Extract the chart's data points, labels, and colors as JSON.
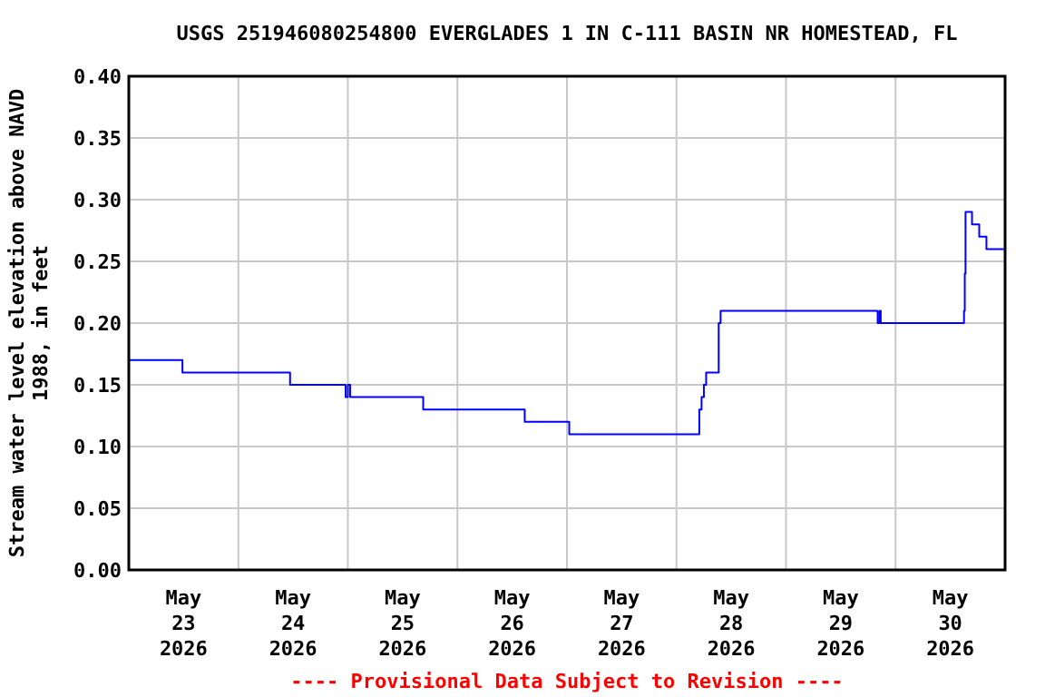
{
  "chart_data": {
    "type": "step",
    "title": "USGS 251946080254800 EVERGLADES 1 IN C-111 BASIN NR HOMESTEAD, FL",
    "ylabel": "Stream water level elevation above NAVD\n1988, in feet",
    "annotations": [
      "---- Provisional Data Subject to Revision ----"
    ],
    "x": [
      "2026-05-23T00:00",
      "2026-05-23T11:45",
      "2026-05-24T11:20",
      "2026-05-24T23:30",
      "2026-05-25T00:00",
      "2026-05-25T00:30",
      "2026-05-25T16:30",
      "2026-05-26T14:45",
      "2026-05-27T00:30",
      "2026-05-28T05:00",
      "2026-05-28T05:30",
      "2026-05-28T06:00",
      "2026-05-28T06:30",
      "2026-05-28T09:15",
      "2026-05-28T09:40",
      "2026-05-29T20:05",
      "2026-05-29T20:30",
      "2026-05-29T20:45",
      "2026-05-30T15:00",
      "2026-05-30T15:10",
      "2026-05-30T15:20",
      "2026-05-30T16:45",
      "2026-05-30T18:20",
      "2026-05-30T19:55",
      "2026-05-30T23:45"
    ],
    "series": [
      {
        "color": "#0000ff",
        "values": [
          0.17,
          0.16,
          0.15,
          0.14,
          0.15,
          0.14,
          0.13,
          0.12,
          0.11,
          0.13,
          0.14,
          0.15,
          0.16,
          0.2,
          0.21,
          0.2,
          0.21,
          0.2,
          0.21,
          0.24,
          0.29,
          0.28,
          0.27,
          0.26,
          0.26
        ]
      }
    ],
    "xlim": [
      "2026-05-23T00:00",
      "2026-05-31T00:00"
    ],
    "xticks": [
      {
        "value": "2026-05-23T12:00",
        "label": "May\n23\n2026"
      },
      {
        "value": "2026-05-24T00:00",
        "label": null
      },
      {
        "value": "2026-05-24T12:00",
        "label": "May\n24\n2026"
      },
      {
        "value": "2026-05-25T00:00",
        "label": null
      },
      {
        "value": "2026-05-25T12:00",
        "label": "May\n25\n2026"
      },
      {
        "value": "2026-05-26T00:00",
        "label": null
      },
      {
        "value": "2026-05-26T12:00",
        "label": "May\n26\n2026"
      },
      {
        "value": "2026-05-27T00:00",
        "label": null
      },
      {
        "value": "2026-05-27T12:00",
        "label": "May\n27\n2026"
      },
      {
        "value": "2026-05-28T00:00",
        "label": null
      },
      {
        "value": "2026-05-28T12:00",
        "label": "May\n28\n2026"
      },
      {
        "value": "2026-05-29T00:00",
        "label": null
      },
      {
        "value": "2026-05-29T12:00",
        "label": "May\n29\n2026"
      },
      {
        "value": "2026-05-30T00:00",
        "label": null
      },
      {
        "value": "2026-05-30T12:00",
        "label": "May\n30\n2026"
      }
    ],
    "ylim": [
      0,
      0.4
    ],
    "yticks": [
      {
        "value": 0,
        "label": "0.00"
      },
      {
        "value": 0.05,
        "label": "0.05"
      },
      {
        "value": 0.1,
        "label": "0.10"
      },
      {
        "value": 0.15,
        "label": "0.15"
      },
      {
        "value": 0.2,
        "label": "0.20"
      },
      {
        "value": 0.25,
        "label": "0.25"
      },
      {
        "value": 0.3,
        "label": "0.30"
      },
      {
        "value": 0.35,
        "label": "0.35"
      },
      {
        "value": 0.4,
        "label": "0.40"
      }
    ],
    "grid": true
  }
}
